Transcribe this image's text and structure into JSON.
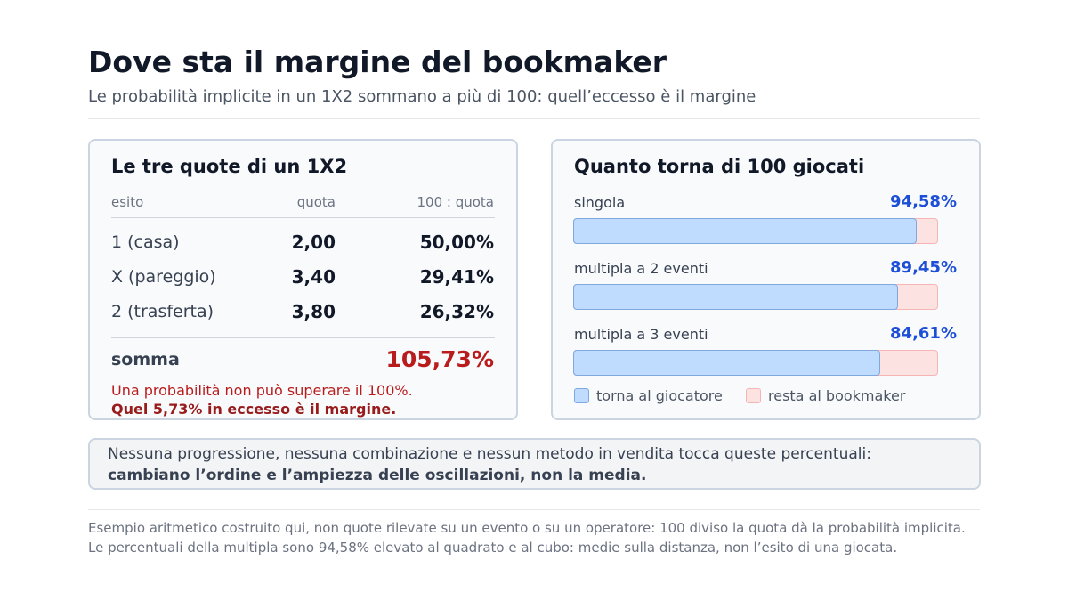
{
  "header": {
    "title": "Dove sta il margine del bookmaker",
    "subtitle": "Le probabilità implicite in un 1X2 sommano a più di 100: quell’eccesso è il margine"
  },
  "odds_table": {
    "title": "Le tre quote di un 1X2",
    "columns": [
      "esito",
      "quota",
      "100 : quota"
    ],
    "rows": [
      [
        "1 (casa)",
        "2,00",
        "50,00%"
      ],
      [
        "X (pareggio)",
        "3,40",
        "29,41%"
      ],
      [
        "2 (trasferta)",
        "3,80",
        "26,32%"
      ]
    ],
    "sum_label": "somma",
    "sum_value": "105,73%",
    "note": [
      "Una probabilità non può superare il 100%.",
      "Quel 5,73% in eccesso è il margine."
    ]
  },
  "returns": {
    "title": "Quanto torna di 100 giocati",
    "items": [
      {
        "name": "singola",
        "value": 94.58,
        "value_label": "94,58%"
      },
      {
        "name": "multipla a 2 eventi",
        "value": 89.45,
        "value_label": "89,45%"
      },
      {
        "name": "multipla a 3 eventi",
        "value": 84.61,
        "value_label": "84,61%"
      }
    ],
    "legend": [
      "torna al giocatore",
      "resta al bookmaker"
    ]
  },
  "callout": {
    "text": "Nessuna progressione, nessuna combinazione e nessun metodo in vendita tocca queste percentuali:",
    "emphasis": "cambiano l’ordine e l’ampiezza delle oscillazioni, non la media."
  },
  "footnote": [
    "Esempio aritmetico costruito qui, non quote rilevate su un evento o su un operatore: 100 diviso la quota dà la probabilità implicita.",
    "Le percentuali della multipla sono 94,58% elevato al quadrato e al cubo: medie sulla distanza, non l’esito di una giocata."
  ]
}
